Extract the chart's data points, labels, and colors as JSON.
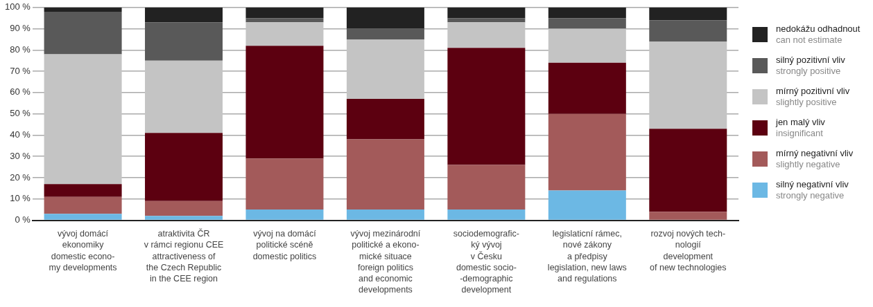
{
  "chart_data": {
    "type": "bar",
    "stacked": true,
    "categories": [
      "vývoj domácí\nekonomiky\ndomestic econo-\nmy developments",
      "atraktivita ČR\nv rámci regionu CEE\nattractiveness of\nthe Czech Republic\nin the CEE region",
      "vývoj na domácí\npolitické scéně\ndomestic politics",
      "vývoj mezinárodní\npolitické a ekono-\nmické situace\nforeign politics\nand economic\ndevelopments",
      "sociodemografic-\nký vývoj\nv Česku\ndomestic socio-\n-demographic\ndevelopment",
      "legislaticní rámec,\nnové zákony\na předpisy\nlegislation, new laws\nand regulations",
      "rozvoj nových tech-\nnologií\ndevelopment\nof new technologies"
    ],
    "series": [
      {
        "name": "silný negativní vliv\nstrongly negative",
        "color": "#6cb8e4",
        "values": [
          3,
          2,
          5,
          5,
          5,
          14,
          0
        ]
      },
      {
        "name": "mírný negativní vliv\nslightly negative",
        "color": "#a35a5a",
        "values": [
          8,
          7,
          24,
          33,
          21,
          36,
          4
        ]
      },
      {
        "name": "jen malý vliv\ninsignificant",
        "color": "#5c0010",
        "values": [
          6,
          32,
          53,
          19,
          55,
          24,
          39
        ]
      },
      {
        "name": "mírný pozitivní vliv\nslightly positive",
        "color": "#c4c4c4",
        "values": [
          61,
          34,
          11,
          28,
          12,
          16,
          41
        ]
      },
      {
        "name": "silný pozitivní vliv\nstrongly positive",
        "color": "#595959",
        "values": [
          20,
          18,
          2,
          5,
          2,
          5,
          10
        ]
      },
      {
        "name": "nedokážu odhadnout\ncan not estimate",
        "color": "#222222",
        "values": [
          2,
          7,
          5,
          10,
          5,
          5,
          6
        ]
      }
    ],
    "ylim": [
      0,
      100
    ],
    "yticks": [
      {
        "value": 0,
        "label": "0 %"
      },
      {
        "value": 10,
        "label": "10 %"
      },
      {
        "value": 20,
        "label": "20 %"
      },
      {
        "value": 30,
        "label": "30 %"
      },
      {
        "value": 40,
        "label": "40 %"
      },
      {
        "value": 50,
        "label": "50 %"
      },
      {
        "value": 60,
        "label": "60 %"
      },
      {
        "value": 70,
        "label": "70 %"
      },
      {
        "value": 80,
        "label": "80 %"
      },
      {
        "value": 90,
        "label": "90 %"
      },
      {
        "value": 100,
        "label": "100 %"
      }
    ],
    "grid": "y",
    "legend": "right"
  }
}
